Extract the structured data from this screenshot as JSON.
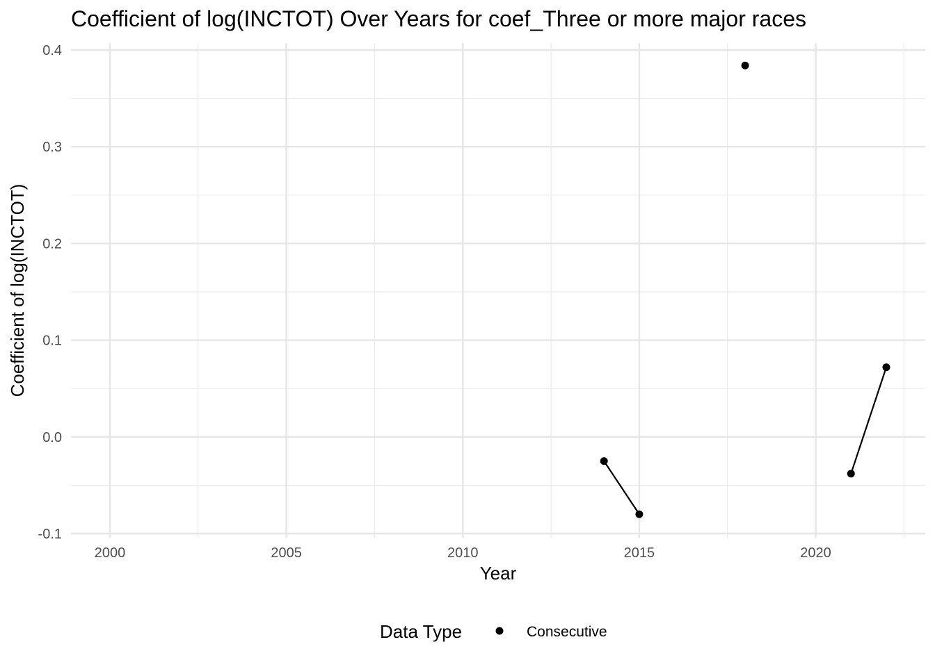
{
  "chart_data": {
    "type": "scatter",
    "title": "Coefficient of log(INCTOT) Over Years for coef_Three or more major races",
    "xlabel": "Year",
    "ylabel": "Coefficient of log(INCTOT)",
    "xlim": [
      1999,
      2022.6
    ],
    "ylim": [
      -0.1,
      0.4
    ],
    "x_ticks": [
      2000,
      2005,
      2010,
      2015,
      2020
    ],
    "y_ticks": [
      -0.1,
      0.0,
      0.1,
      0.2,
      0.3,
      0.4
    ],
    "y_tick_labels": [
      "-0.1",
      "0.0",
      "0.1",
      "0.2",
      "0.3",
      "0.4"
    ],
    "grid": true,
    "legend": {
      "title": "Data Type",
      "position": "bottom",
      "entries": [
        "Consecutive"
      ]
    },
    "series": [
      {
        "name": "Consecutive",
        "color": "#000000",
        "points": [
          {
            "x": 2014,
            "y": -0.025
          },
          {
            "x": 2015,
            "y": -0.08
          },
          {
            "x": 2018,
            "y": 0.384
          },
          {
            "x": 2021,
            "y": -0.038
          },
          {
            "x": 2022,
            "y": 0.072
          }
        ],
        "line_segments": [
          [
            2014,
            2015
          ],
          [
            2021,
            2022
          ]
        ]
      }
    ]
  }
}
